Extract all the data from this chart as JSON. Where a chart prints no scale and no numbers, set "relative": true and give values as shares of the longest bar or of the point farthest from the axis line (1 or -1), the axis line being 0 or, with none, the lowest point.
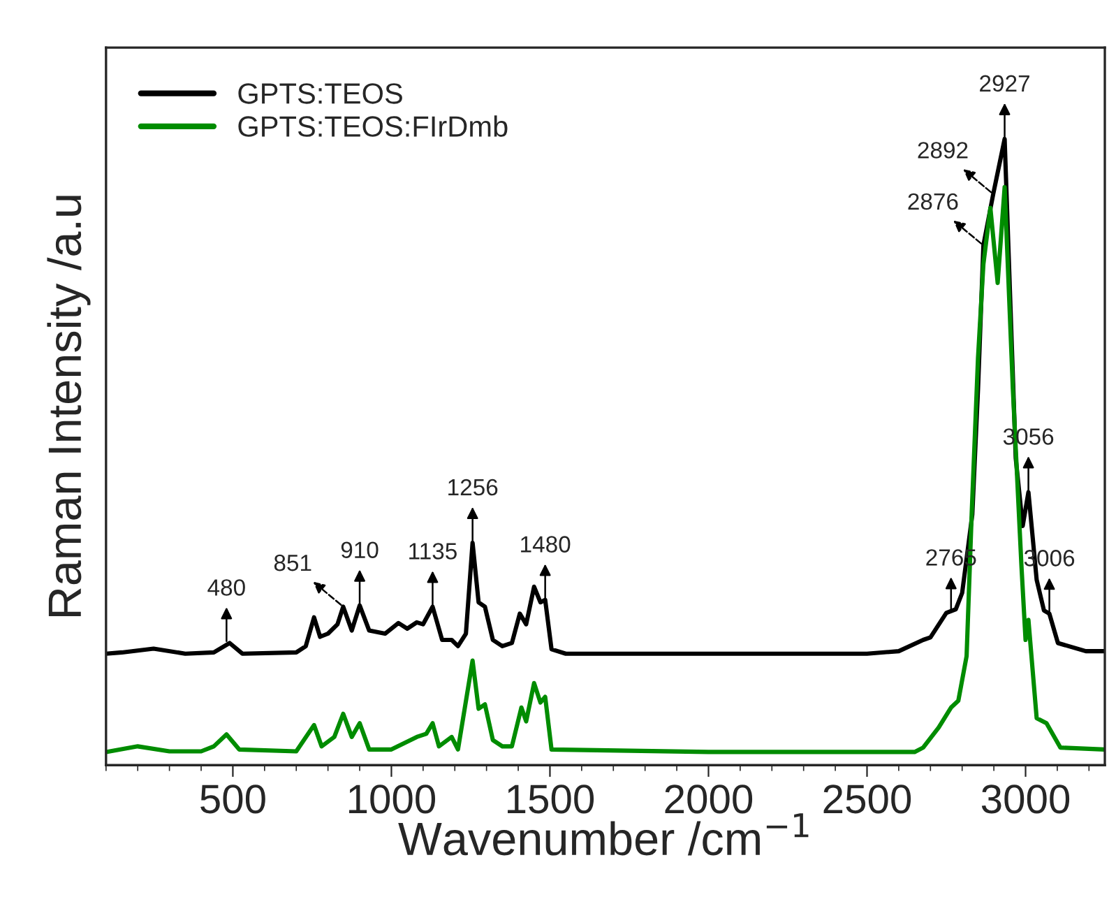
{
  "chart_data": {
    "type": "line",
    "relative": true,
    "xlabel": "Wavenumber /cm$^{−1}$",
    "ylabel": "Raman Intensity /a.u",
    "xlim": [
      100,
      3250
    ],
    "xticks": [
      500,
      1000,
      1500,
      2000,
      2500,
      3000
    ],
    "grid": false,
    "legend": "top left",
    "line_style": "solid",
    "marker": "none",
    "series": [
      {
        "name": "GPTS:TEOS",
        "color": "#000000",
        "x": [
          100,
          150,
          250,
          350,
          440,
          490,
          530,
          700,
          730,
          756,
          775,
          800,
          830,
          848,
          875,
          900,
          930,
          980,
          1022,
          1050,
          1080,
          1100,
          1130,
          1160,
          1190,
          1210,
          1235,
          1256,
          1275,
          1295,
          1320,
          1350,
          1380,
          1405,
          1425,
          1450,
          1470,
          1485,
          1505,
          1550,
          2000,
          2500,
          2600,
          2677,
          2700,
          2750,
          2780,
          2800,
          2832,
          2850,
          2867,
          2898,
          2912,
          2934,
          2969,
          2991,
          3009,
          3035,
          3058,
          3075,
          3102,
          3190,
          3250
        ],
        "values": [
          0.178,
          0.18,
          0.186,
          0.178,
          0.18,
          0.195,
          0.178,
          0.18,
          0.19,
          0.236,
          0.205,
          0.21,
          0.225,
          0.253,
          0.215,
          0.255,
          0.215,
          0.21,
          0.227,
          0.218,
          0.228,
          0.225,
          0.253,
          0.2,
          0.2,
          0.19,
          0.21,
          0.355,
          0.26,
          0.253,
          0.2,
          0.19,
          0.195,
          0.242,
          0.225,
          0.285,
          0.26,
          0.264,
          0.185,
          0.178,
          0.178,
          0.178,
          0.182,
          0.2,
          0.204,
          0.243,
          0.249,
          0.275,
          0.4,
          0.6,
          0.83,
          0.912,
          null,
          1.0,
          0.49,
          0.382,
          0.436,
          0.296,
          0.247,
          0.242,
          0.195,
          0.182,
          0.182
        ]
      },
      {
        "name": "GPTS:TEOS:FIrDmb",
        "color": "#008c00",
        "x": [
          100,
          200,
          300,
          400,
          440,
          480,
          520,
          700,
          756,
          780,
          820,
          848,
          875,
          900,
          930,
          1000,
          1080,
          1110,
          1130,
          1150,
          1190,
          1210,
          1256,
          1275,
          1295,
          1320,
          1350,
          1380,
          1410,
          1425,
          1450,
          1470,
          1485,
          1505,
          2000,
          2500,
          2650,
          2677,
          2726,
          2765,
          2788,
          2814,
          2830,
          2850,
          2867,
          2889,
          2912,
          2934,
          2960,
          2987,
          3000,
          3009,
          3035,
          3066,
          3110,
          3250
        ],
        "values": [
          0.021,
          0.03,
          0.022,
          0.022,
          0.03,
          0.049,
          0.025,
          0.022,
          0.064,
          0.03,
          0.045,
          0.082,
          0.045,
          0.067,
          0.025,
          0.025,
          0.045,
          0.05,
          0.067,
          0.03,
          0.045,
          0.025,
          0.167,
          0.09,
          0.097,
          0.04,
          0.03,
          0.03,
          0.092,
          0.07,
          0.131,
          0.1,
          0.109,
          0.025,
          0.021,
          0.021,
          0.021,
          0.028,
          0.06,
          0.092,
          0.103,
          0.174,
          0.4,
          0.65,
          0.8,
          0.89,
          0.77,
          0.923,
          0.6,
          0.318,
          0.2,
          0.232,
          0.075,
          0.067,
          0.028,
          0.025
        ]
      }
    ],
    "annotations": [
      {
        "text": "480",
        "x": 480,
        "y": 0.195
      },
      {
        "text": "851",
        "x": 848,
        "y": 0.253
      },
      {
        "text": "910",
        "x": 900,
        "y": 0.255
      },
      {
        "text": "1135",
        "x": 1130,
        "y": 0.253
      },
      {
        "text": "1256",
        "x": 1256,
        "y": 0.355
      },
      {
        "text": "1480",
        "x": 1485,
        "y": 0.264
      },
      {
        "text": "2765",
        "x": 2765,
        "y": 0.243
      },
      {
        "text": "2876",
        "x": 2867,
        "y": 0.83
      },
      {
        "text": "2892",
        "x": 2898,
        "y": 0.912
      },
      {
        "text": "2927",
        "x": 2934,
        "y": 1.0
      },
      {
        "text": "3056",
        "x": 3009,
        "y": 0.436
      },
      {
        "text": "3006",
        "x": 3075,
        "y": 0.242
      }
    ]
  }
}
